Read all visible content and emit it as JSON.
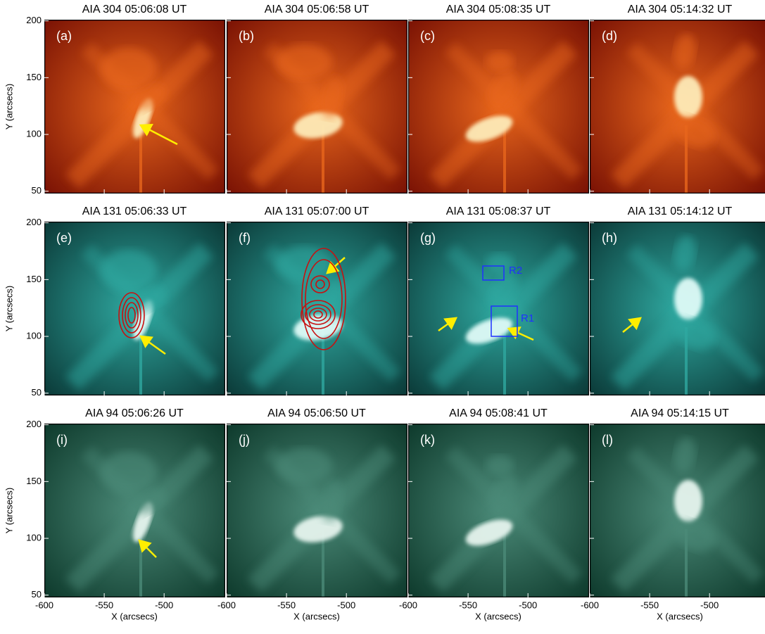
{
  "axes": {
    "xlabel": "X (arcsecs)",
    "ylabel": "Y (arcsecs)",
    "xlim": [
      -600,
      -449
    ],
    "xticks": [
      -600,
      -550,
      -500
    ],
    "ylim": [
      48,
      201
    ],
    "yticks": [
      50,
      100,
      150,
      200
    ]
  },
  "rows": [
    {
      "color": "#7a1204",
      "glow": "#e8661c",
      "bright": "#fff2c0",
      "panels": [
        {
          "title": "AIA 304 05:06:08 UT",
          "label": "(a)"
        },
        {
          "title": "AIA 304 05:06:58 UT",
          "label": "(b)"
        },
        {
          "title": "AIA 304 05:08:35 UT",
          "label": "(c)"
        },
        {
          "title": "AIA 304 05:14:32 UT",
          "label": "(d)"
        }
      ]
    },
    {
      "color": "#0b3a38",
      "glow": "#2fa8a0",
      "bright": "#e8fffc",
      "panels": [
        {
          "title": "AIA 131 05:06:33 UT",
          "label": "(e)"
        },
        {
          "title": "AIA 131 05:07:00 UT",
          "label": "(f)"
        },
        {
          "title": "AIA 131 05:08:37 UT",
          "label": "(g)"
        },
        {
          "title": "AIA 131 05:14:12 UT",
          "label": "(h)"
        }
      ]
    },
    {
      "color": "#0e3a2c",
      "glow": "#4b8a78",
      "bright": "#eefaf4",
      "panels": [
        {
          "title": "AIA 94 05:06:26 UT",
          "label": "(i)"
        },
        {
          "title": "AIA 94 05:06:50 UT",
          "label": "(j)"
        },
        {
          "title": "AIA 94 05:08:41 UT",
          "label": "(k)"
        },
        {
          "title": "AIA 94 05:14:15 UT",
          "label": "(l)"
        }
      ]
    }
  ],
  "annotations": {
    "r1": "R1",
    "r2": "R2"
  }
}
